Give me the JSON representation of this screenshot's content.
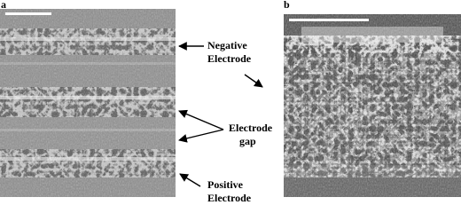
{
  "panels": [
    {
      "label": "a"
    },
    {
      "label": "b"
    }
  ],
  "annotations": [
    {
      "lines": [
        "Negative",
        "Electrode"
      ]
    },
    {
      "lines": [
        "Electrode",
        "gap"
      ]
    },
    {
      "lines": [
        "Positive",
        "Electrode"
      ]
    }
  ]
}
